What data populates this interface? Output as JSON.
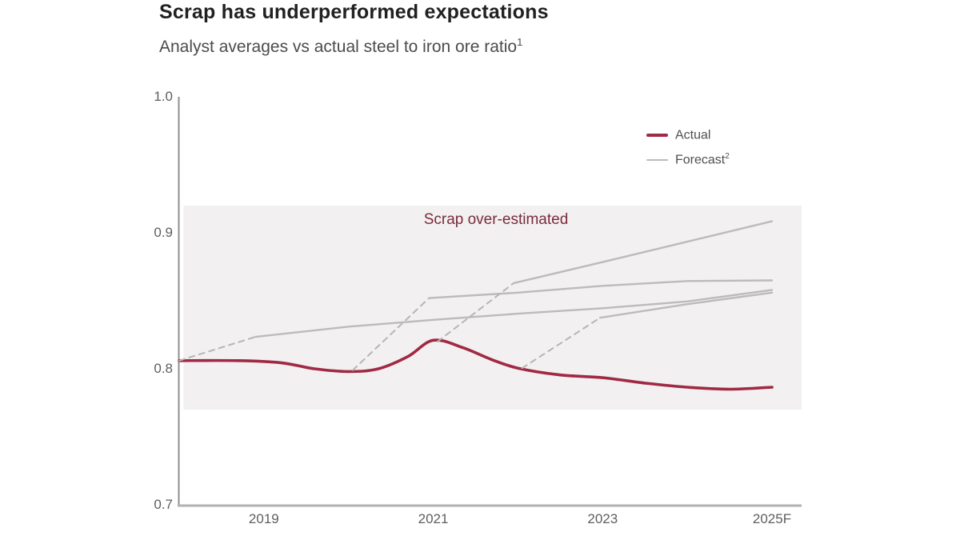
{
  "header": {
    "title": "Scrap has underperformed expectations",
    "subtitle": "Analyst averages vs actual steel to iron ore ratio",
    "subtitle_superscript": "1"
  },
  "legend": {
    "items": [
      {
        "label": "Actual",
        "superscript": ""
      },
      {
        "label": "Forecast",
        "superscript": "2"
      }
    ]
  },
  "colors": {
    "accent": "#A02944",
    "forecast": "#BCBABB",
    "dashed": "#B6B4B5",
    "band": "#F2F0F1",
    "annotation": "#7A2B3C",
    "y_axis": "#8F8F8F",
    "x_axis": "#B2B0B1"
  },
  "chart_data": {
    "type": "line",
    "title": "Analyst averages vs actual steel to iron ore ratio",
    "xlabel": "",
    "ylabel": "",
    "ylim": [
      0.7,
      1.0
    ],
    "xlim": [
      2018,
      2025.35
    ],
    "grid": false,
    "legend_position": "top-right",
    "y_ticks": [
      {
        "value": 1.0,
        "label": "1.0"
      },
      {
        "value": 0.9,
        "label": "0.9"
      },
      {
        "value": 0.8,
        "label": "0.8"
      },
      {
        "value": 0.7,
        "label": "0.7"
      }
    ],
    "x_ticks": [
      {
        "value": 2019,
        "label": "2019"
      },
      {
        "value": 2021,
        "label": "2021"
      },
      {
        "value": 2023,
        "label": "2023"
      },
      {
        "value": 2025,
        "label": "2025F"
      }
    ],
    "shaded_band": {
      "label": "Scrap over-estimated",
      "x_from": 2018.05,
      "x_to": 2025.35,
      "y_from": 0.77,
      "y_to": 0.92
    },
    "series": [
      {
        "name": "actual",
        "style": "actual",
        "smooth": true,
        "segments": [
          {
            "dash": false,
            "points": [
              [
                2018.0,
                0.806
              ],
              [
                2018.7,
                0.806
              ],
              [
                2019.2,
                0.8045
              ],
              [
                2019.6,
                0.8
              ],
              [
                2020.0,
                0.798
              ],
              [
                2020.35,
                0.8
              ],
              [
                2020.7,
                0.809
              ],
              [
                2021.0,
                0.821
              ],
              [
                2021.35,
                0.8155
              ],
              [
                2021.7,
                0.8065
              ],
              [
                2022.0,
                0.8005
              ],
              [
                2022.5,
                0.7955
              ],
              [
                2023.0,
                0.7935
              ],
              [
                2023.5,
                0.7895
              ],
              [
                2024.0,
                0.7865
              ],
              [
                2024.5,
                0.785
              ],
              [
                2025.0,
                0.7865
              ]
            ]
          }
        ]
      },
      {
        "name": "forecast-2018",
        "style": "forecast",
        "smooth": false,
        "segments": [
          {
            "dash": true,
            "points": [
              [
                2018.0,
                0.806
              ],
              [
                2018.9,
                0.8235
              ]
            ]
          },
          {
            "dash": false,
            "points": [
              [
                2018.9,
                0.8235
              ],
              [
                2020.0,
                0.831
              ],
              [
                2021.0,
                0.836
              ],
              [
                2022.0,
                0.8405
              ],
              [
                2023.0,
                0.8445
              ],
              [
                2024.0,
                0.8495
              ],
              [
                2025.0,
                0.858
              ]
            ]
          }
        ]
      },
      {
        "name": "forecast-2020",
        "style": "forecast",
        "smooth": false,
        "segments": [
          {
            "dash": true,
            "points": [
              [
                2020.05,
                0.799
              ],
              [
                2020.95,
                0.852
              ]
            ]
          },
          {
            "dash": false,
            "points": [
              [
                2020.95,
                0.852
              ],
              [
                2022.0,
                0.856
              ],
              [
                2023.0,
                0.861
              ],
              [
                2024.0,
                0.8645
              ],
              [
                2025.0,
                0.865
              ]
            ]
          }
        ]
      },
      {
        "name": "forecast-2021",
        "style": "forecast",
        "smooth": false,
        "segments": [
          {
            "dash": true,
            "points": [
              [
                2021.05,
                0.82
              ],
              [
                2021.95,
                0.863
              ]
            ]
          },
          {
            "dash": false,
            "points": [
              [
                2021.95,
                0.863
              ],
              [
                2023.0,
                0.8785
              ],
              [
                2025.0,
                0.9085
              ]
            ]
          }
        ]
      },
      {
        "name": "forecast-2022",
        "style": "forecast",
        "smooth": false,
        "segments": [
          {
            "dash": true,
            "points": [
              [
                2022.05,
                0.8005
              ],
              [
                2022.97,
                0.8375
              ]
            ]
          },
          {
            "dash": false,
            "points": [
              [
                2022.97,
                0.8375
              ],
              [
                2024.0,
                0.8475
              ],
              [
                2025.0,
                0.856
              ]
            ]
          }
        ]
      }
    ]
  }
}
